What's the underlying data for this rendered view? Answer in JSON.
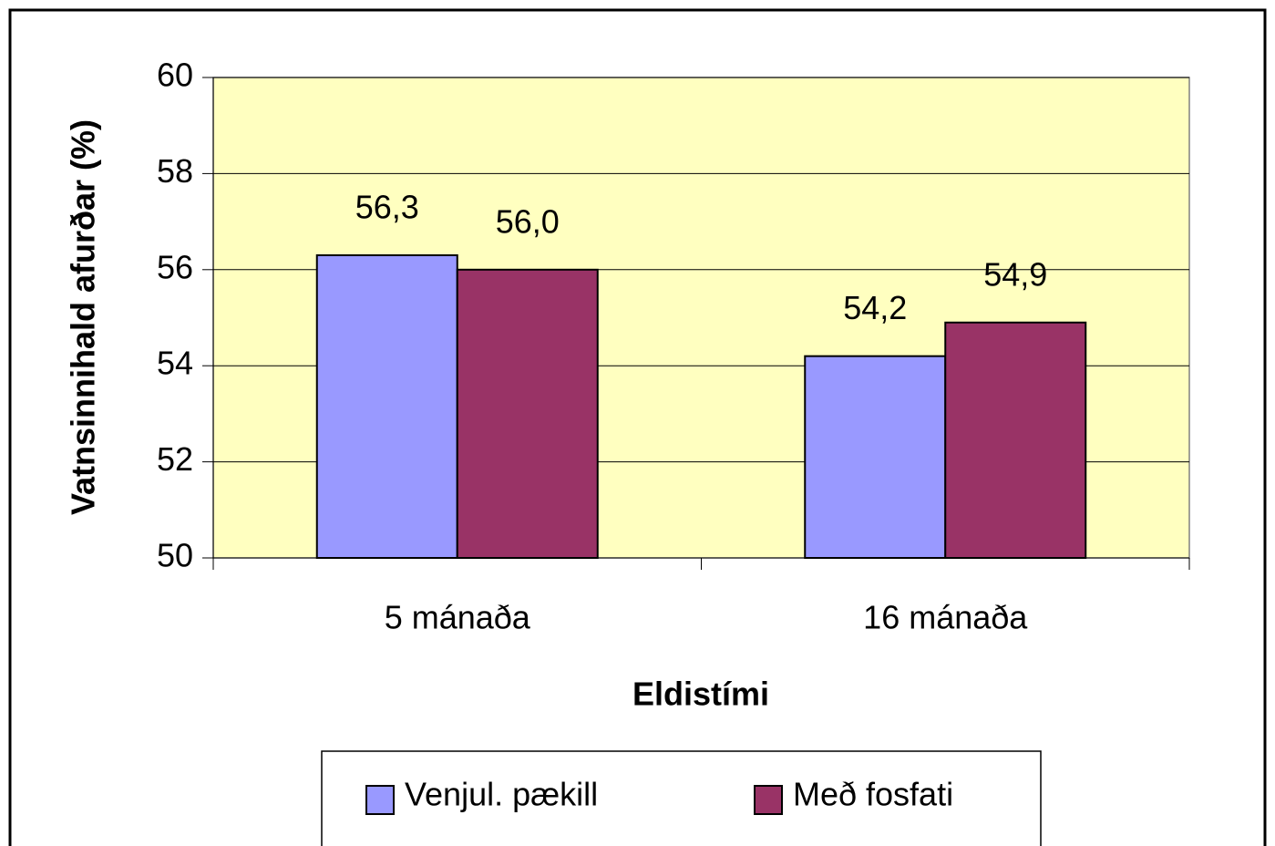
{
  "chart_data": {
    "type": "bar",
    "x_label": "Eldistími",
    "y_label": "Vatnsinnihald afurðar (%)",
    "categories": [
      "5 mánaða",
      "16 mánaða"
    ],
    "series": [
      {
        "name": "Venjul. pækill",
        "color": "#9999ff",
        "values": [
          56.3,
          54.2
        ],
        "value_labels": [
          "56,3",
          "54,2"
        ]
      },
      {
        "name": "Með fosfati",
        "color": "#993366",
        "values": [
          56.0,
          54.9
        ],
        "value_labels": [
          "56,0",
          "54,9"
        ]
      }
    ],
    "ylim": [
      50,
      60
    ],
    "yticks": [
      50,
      52,
      54,
      56,
      58,
      60
    ],
    "grid": true,
    "plot_background": "#ffffc0",
    "legend": "bottom"
  }
}
